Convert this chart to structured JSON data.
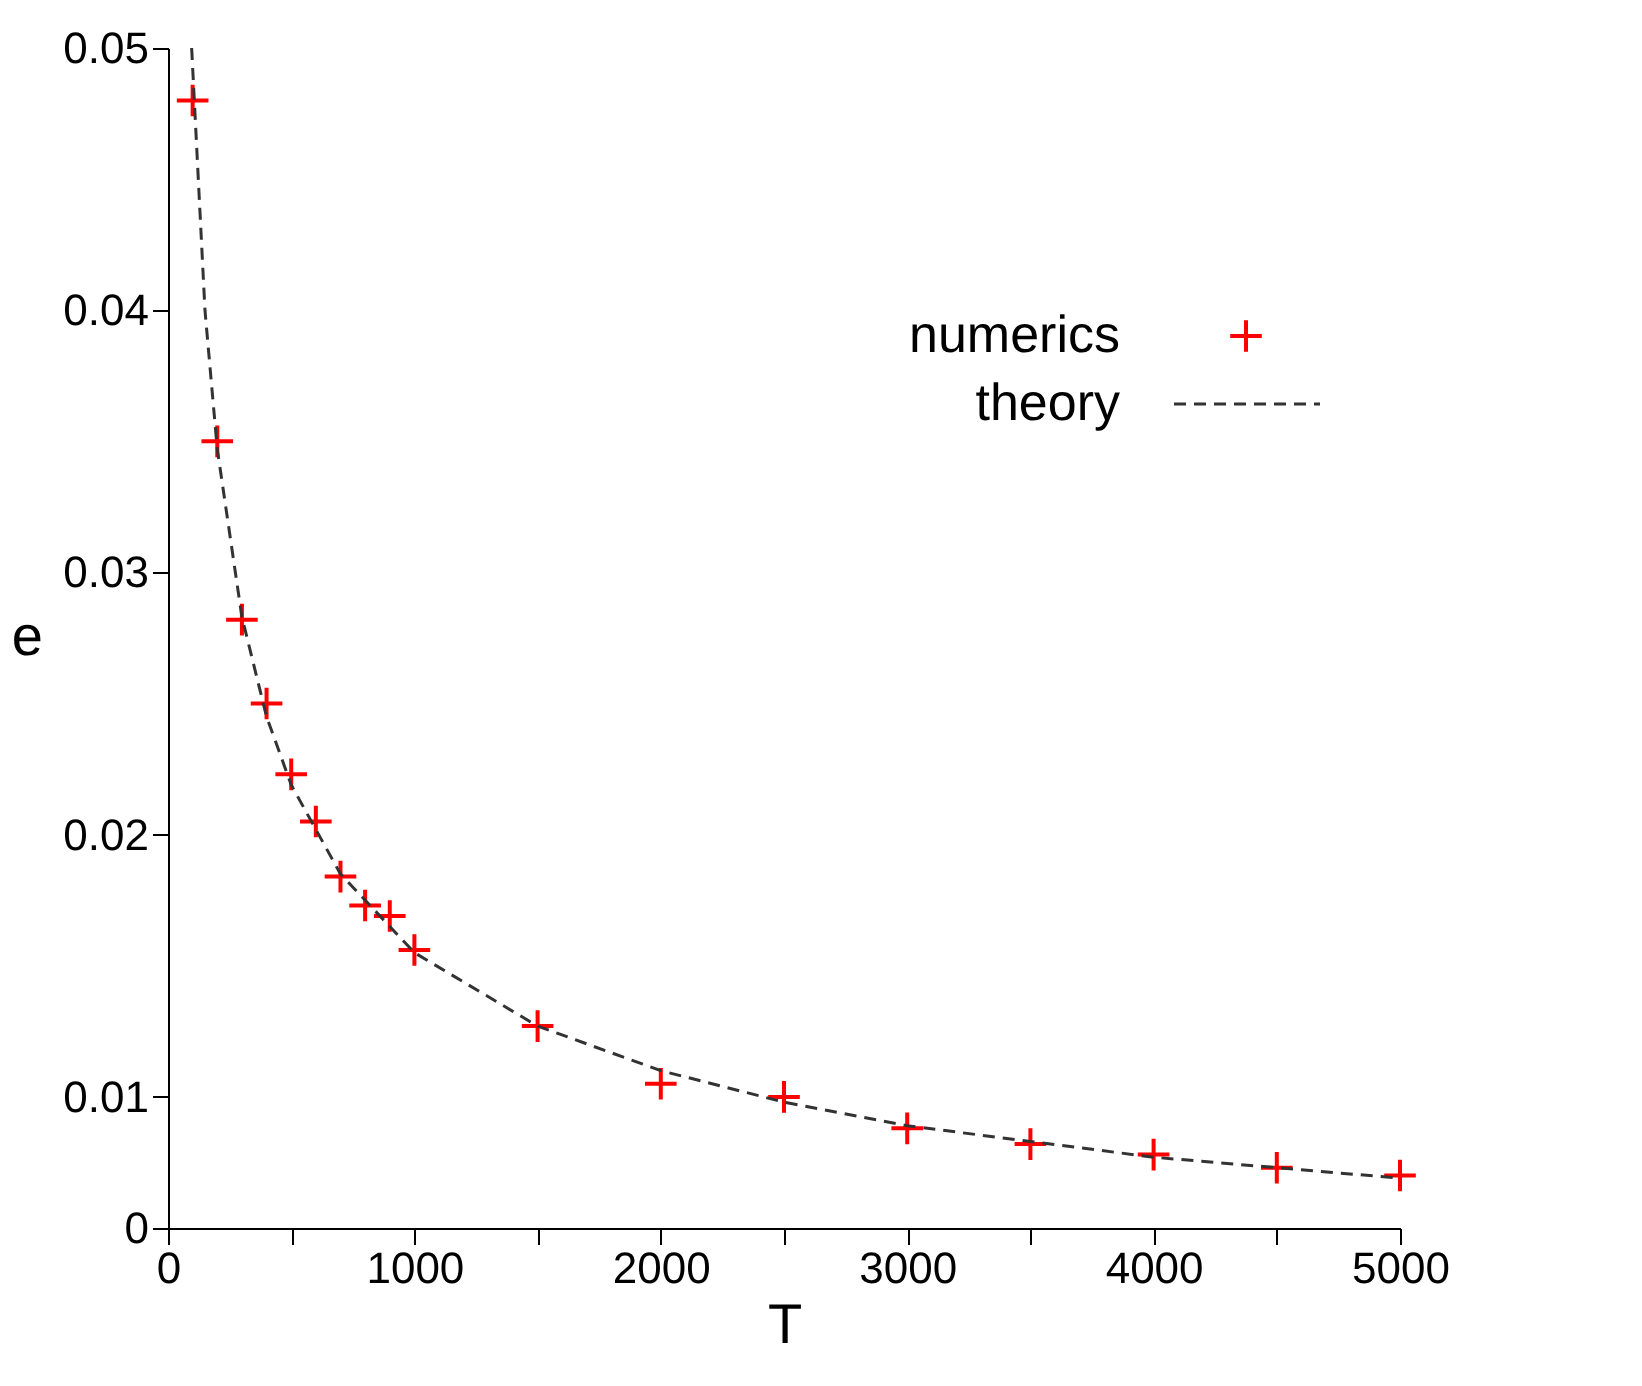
{
  "chart_data": {
    "type": "scatter",
    "xlabel": "T",
    "ylabel": "e",
    "xlim": [
      0,
      5000
    ],
    "xticks": [
      0,
      {
        "value": 500,
        "label": null
      },
      1000,
      {
        "value": 1500,
        "label": null
      },
      2000,
      {
        "value": 2500,
        "label": null
      },
      3000,
      {
        "value": 3500,
        "label": null
      },
      4000,
      {
        "value": 4500,
        "label": null
      },
      5000
    ],
    "ylim": [
      0.005,
      0.05
    ],
    "yticks": [
      {
        "value": 0.005,
        "label": "0"
      },
      0.01,
      0.02,
      0.03,
      0.04,
      0.05
    ],
    "grid": false,
    "legend": "top right",
    "series": [
      {
        "name": "numerics",
        "marker": "cross",
        "color": "#ff0000",
        "x": [
          100,
          200,
          300,
          400,
          500,
          600,
          700,
          800,
          900,
          1000,
          1500,
          2000,
          2500,
          3000,
          3500,
          4000,
          4500,
          5000
        ],
        "values": [
          0.048,
          0.035,
          0.0282,
          0.025,
          0.0223,
          0.0205,
          0.0184,
          0.0173,
          0.0169,
          0.0156,
          0.0127,
          0.0105,
          0.01,
          0.0088,
          0.0082,
          0.0078,
          0.0073,
          0.007
        ]
      },
      {
        "name": "theory",
        "type": "line",
        "marker": "none",
        "line_style": "dashed",
        "color": "#333333",
        "x": [
          96,
          150,
          200,
          300,
          400,
          500,
          700,
          1000,
          1500,
          2000,
          2500,
          3000,
          3500,
          4000,
          4500,
          5000
        ],
        "values": [
          0.05,
          0.04,
          0.0347,
          0.0283,
          0.0245,
          0.0219,
          0.0185,
          0.0155,
          0.0127,
          0.011,
          0.0098,
          0.0089,
          0.0083,
          0.0077,
          0.0073,
          0.0069
        ]
      }
    ]
  }
}
